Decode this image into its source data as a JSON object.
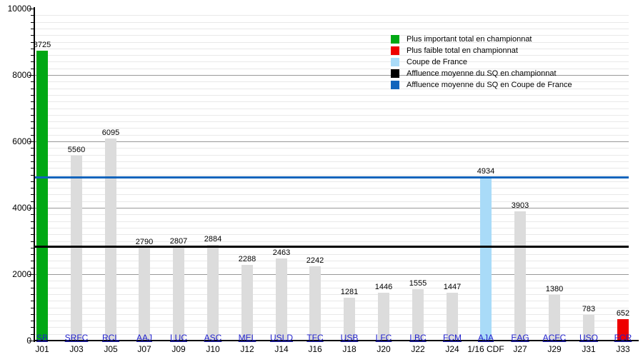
{
  "chart_data": {
    "type": "bar",
    "title": "",
    "xlabel": "",
    "ylabel": "",
    "ylim": [
      0,
      10000
    ],
    "y_major_tick_step": 2000,
    "y_minor_tick_step": 200,
    "grid": "on",
    "legend_position": "top-right",
    "matches": [
      {
        "day": "J01",
        "opponent": "SB",
        "value": 8725,
        "category": "highest"
      },
      {
        "day": "J03",
        "opponent": "SRFC",
        "value": 5560,
        "category": "league"
      },
      {
        "day": "J05",
        "opponent": "RCL",
        "value": 6095,
        "category": "league"
      },
      {
        "day": "J07",
        "opponent": "AAJ",
        "value": 2790,
        "category": "league"
      },
      {
        "day": "J09",
        "opponent": "LUC",
        "value": 2807,
        "category": "league"
      },
      {
        "day": "J10",
        "opponent": "ASC",
        "value": 2884,
        "category": "league"
      },
      {
        "day": "J12",
        "opponent": "MEL",
        "value": 2288,
        "category": "league"
      },
      {
        "day": "J14",
        "opponent": "USLD",
        "value": 2463,
        "category": "league"
      },
      {
        "day": "J16",
        "opponent": "TFC",
        "value": 2242,
        "category": "league"
      },
      {
        "day": "J18",
        "opponent": "USB",
        "value": 1281,
        "category": "league"
      },
      {
        "day": "J20",
        "opponent": "LFC",
        "value": 1446,
        "category": "league"
      },
      {
        "day": "J22",
        "opponent": "LBC",
        "value": 1555,
        "category": "league"
      },
      {
        "day": "J24",
        "opponent": "FCM",
        "value": 1447,
        "category": "league"
      },
      {
        "day": "1/16 CDF",
        "opponent": "AJA",
        "value": 4934,
        "category": "cup"
      },
      {
        "day": "J27",
        "opponent": "EAG",
        "value": 3903,
        "category": "league"
      },
      {
        "day": "J29",
        "opponent": "ACFC",
        "value": 1380,
        "category": "league"
      },
      {
        "day": "J31",
        "opponent": "USO",
        "value": 783,
        "category": "league"
      },
      {
        "day": "J33",
        "opponent": "FCR",
        "value": 652,
        "category": "lowest"
      }
    ],
    "reference_lines": [
      {
        "name": "avg-league",
        "value": 2841,
        "color": "#000000"
      },
      {
        "name": "avg-cup",
        "value": 4934,
        "color": "#1164bc"
      }
    ],
    "legend": [
      {
        "label": "Plus important total en championnat",
        "color": "#00a814"
      },
      {
        "label": "Plus faible total en championnat",
        "color": "#ee0000"
      },
      {
        "label": "Coupe de France",
        "color": "#a9dbf8"
      },
      {
        "label": "Affluence moyenne du SQ en championnat",
        "color": "#000000"
      },
      {
        "label": "Affluence moyenne du SQ en Coupe de France",
        "color": "#1164bc"
      }
    ]
  },
  "colors": {
    "highest": "#00a814",
    "lowest": "#ee0000",
    "cup": "#a9dbf8",
    "league": "#dcdcdc",
    "link_blue": "#2222cc",
    "grid_major": "#999999",
    "grid_minor": "#e9e9e9",
    "axis": "#000000"
  }
}
